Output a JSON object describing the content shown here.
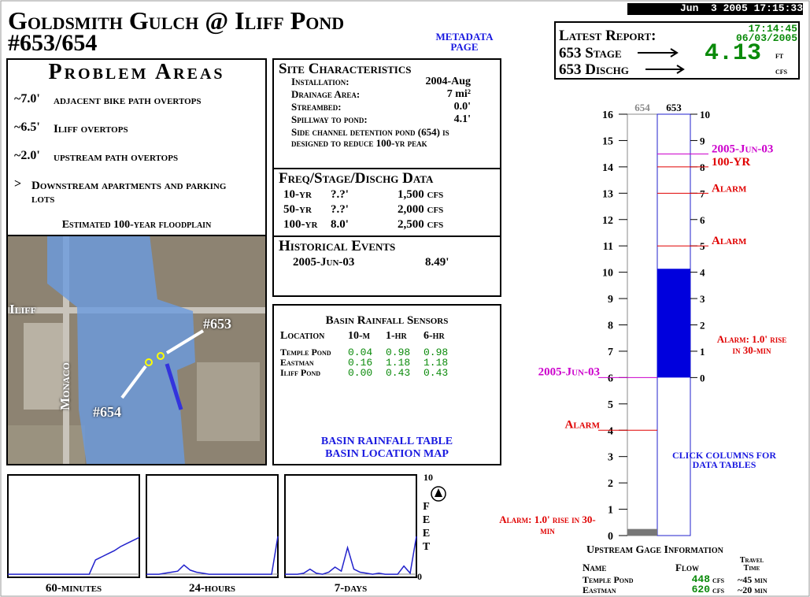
{
  "header": {
    "title": "Goldsmith Gulch @ Iliff Pond",
    "subtitle": "#653/654",
    "metadata_link": "METADATA PAGE",
    "timestamp": "Jun  3 2005 17:15:33"
  },
  "latest_report": {
    "label": "Latest Report:",
    "time": "17:14:45",
    "date": "06/03/2005",
    "stage_label": "653 Stage",
    "stage_value": 4.13,
    "stage_unit": "ft",
    "discharge_label": "653 Dischg",
    "discharge_unit": "cfs"
  },
  "problem_areas": {
    "title": "Problem Areas",
    "items": [
      {
        "level": "~7.0'",
        "text": "adjacent bike path overtops"
      },
      {
        "level": "~6.5'",
        "text": "Iliff overtops"
      },
      {
        "level": "~2.0'",
        "text": "upstream path overtops"
      },
      {
        "level": ">",
        "text": "Downstream apartments and parking lots"
      }
    ],
    "map_caption": "Estimated 100-year floodplain",
    "map_labels": [
      "Iliff",
      "Monaco",
      "#653",
      "#654"
    ]
  },
  "site": {
    "title": "Site Characteristics",
    "rows": [
      [
        "Installation:",
        "2004-Aug"
      ],
      [
        "Drainage Area:",
        "7 mi²"
      ],
      [
        "Streambed:",
        "0.0'"
      ],
      [
        "Spillway to pond:",
        "4.1'"
      ]
    ],
    "note": "Side channel detention pond (654) is designed to reduce 100-yr peak"
  },
  "freq": {
    "title": "Freq/Stage/Dischg Data",
    "rows": [
      [
        "10-yr",
        "?.?'",
        "1,500 cfs"
      ],
      [
        "50-yr",
        "?.?'",
        "2,000 cfs"
      ],
      [
        "100-yr",
        "8.0'",
        "2,500 cfs"
      ]
    ]
  },
  "historical": {
    "title": "Historical Events",
    "rows": [
      [
        "2005-Jun-03",
        "8.49'"
      ]
    ]
  },
  "rainfall": {
    "title": "Basin Rainfall Sensors",
    "headers": [
      "Location",
      "10-m",
      "1-hr",
      "6-hr"
    ],
    "rows": [
      [
        "Temple Pond",
        "0.04",
        "0.98",
        "0.98"
      ],
      [
        "Eastman",
        "0.16",
        "1.18",
        "1.18"
      ],
      [
        "Iliff Pond",
        "0.00",
        "0.43",
        "0.43"
      ]
    ],
    "links": [
      "BASIN RAINFALL TABLE",
      "BASIN LOCATION MAP"
    ]
  },
  "gauge": {
    "left_label": "654",
    "right_label": "653",
    "left_range": [
      0,
      16
    ],
    "right_range": [
      -6,
      10
    ],
    "left_ticks": [
      0,
      1,
      2,
      3,
      4,
      5,
      6,
      7,
      8,
      9,
      10,
      11,
      12,
      13,
      14,
      15,
      16
    ],
    "right_ticks": [
      0,
      1,
      2,
      3,
      4,
      5,
      6,
      7,
      8,
      9,
      10
    ],
    "stage_653": 4.13,
    "stage_654": 0.25,
    "markers": [
      {
        "label": "2005-Jun-03",
        "value": 8.49,
        "side": "right",
        "color": "#cc00cc"
      },
      {
        "label": "100-YR",
        "value": 8,
        "side": "right",
        "color": "#e00000"
      },
      {
        "label": "Alarm",
        "value": 7,
        "side": "right",
        "color": "#e00000"
      },
      {
        "label": "Alarm",
        "value": 5,
        "side": "right",
        "color": "#e00000"
      },
      {
        "label": "2005-Jun-03",
        "value": 6,
        "side": "left",
        "color": "#cc00cc"
      },
      {
        "label": "Alarm",
        "value": 4,
        "side": "left",
        "color": "#e00000"
      }
    ],
    "alarm_right": "Alarm: 1.0' rise in 30-min",
    "alarm_left": "Alarm: 1.0' rise in 30-min",
    "click_note": "CLICK COLUMNS FOR DATA TABLES"
  },
  "upstream": {
    "title": "Upstream Gage Information",
    "headers": [
      "Name",
      "Flow",
      "Travel Time"
    ],
    "rows": [
      [
        "Temple Pond",
        "448",
        "cfs",
        "~45 min"
      ],
      [
        "Eastman",
        "620",
        "cfs",
        "~20 min"
      ]
    ]
  },
  "mini_charts": {
    "ylim": [
      0,
      10
    ],
    "yticks": [
      0,
      10
    ],
    "axis_label": "FEET",
    "charts": [
      {
        "label": "60-minutes",
        "values": [
          0.3,
          0.3,
          0.3,
          0.3,
          0.3,
          0.3,
          0.3,
          0.3,
          0.3,
          0.3,
          0.3,
          0.3,
          0.3,
          0.3,
          1.7,
          2.0,
          2.3,
          2.6,
          3.0,
          3.3,
          3.6,
          3.9
        ]
      },
      {
        "label": "24-hours",
        "values": [
          0.3,
          0.3,
          0.3,
          0.4,
          0.5,
          0.6,
          1.2,
          0.7,
          0.5,
          0.4,
          0.3,
          0.3,
          0.3,
          0.3,
          0.3,
          0.3,
          0.3,
          0.3,
          0.3,
          0.3,
          0.3,
          4.0
        ]
      },
      {
        "label": "7-days",
        "values": [
          0.3,
          0.3,
          0.3,
          0.4,
          0.8,
          0.4,
          0.3,
          0.5,
          1.0,
          0.6,
          2.9,
          0.8,
          0.5,
          0.4,
          0.3,
          0.4,
          0.3,
          0.3,
          0.3,
          1.1,
          0.4,
          4.0
        ]
      }
    ]
  }
}
